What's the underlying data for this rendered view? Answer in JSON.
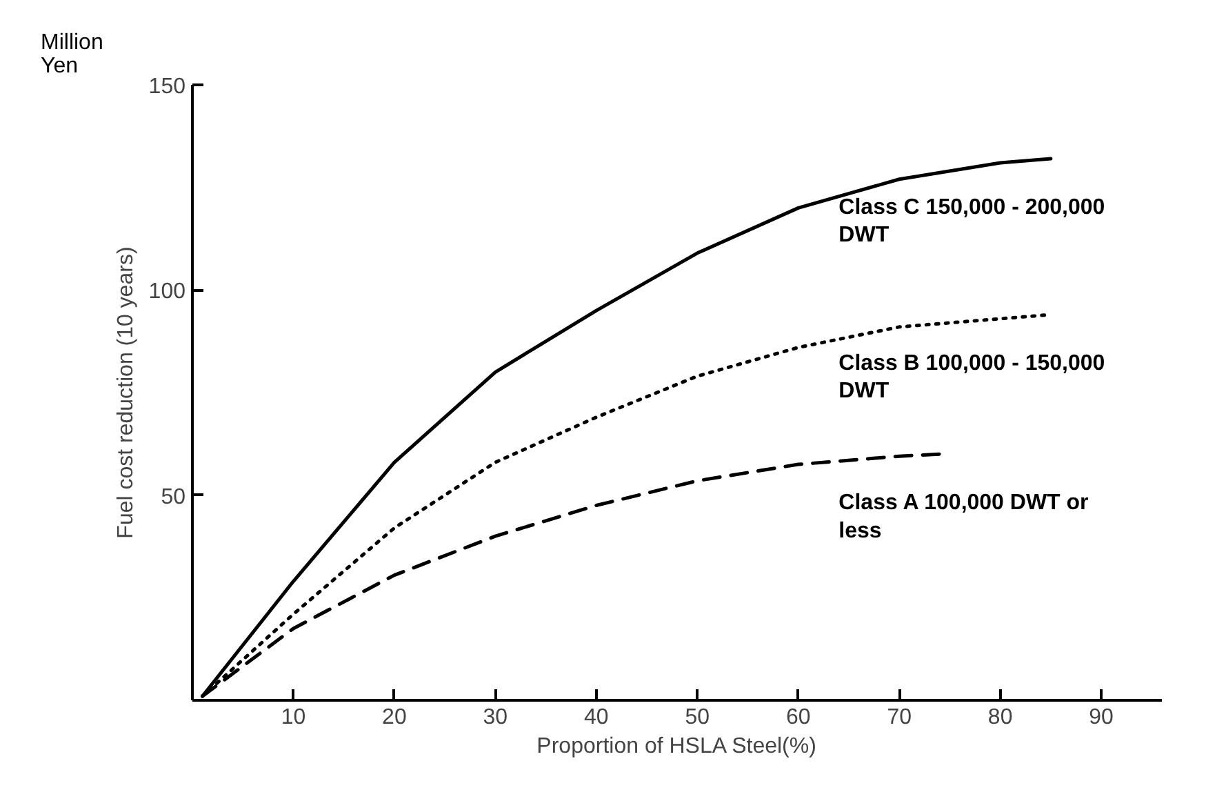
{
  "chart_data": {
    "type": "line",
    "xlabel": "Proportion of HSLA Steel(%)",
    "ylabel": "Fuel cost reduction (10 years)",
    "annotations": [
      "Million\nYen"
    ],
    "xlim": [
      0,
      96
    ],
    "ylim": [
      0,
      150
    ],
    "xticks": [
      10,
      20,
      30,
      40,
      50,
      60,
      70,
      80,
      90
    ],
    "yticks": [
      50,
      100,
      150
    ],
    "grid": false,
    "marker": "none",
    "series": [
      {
        "name": "Class C 150,000 - 200,000\nDWT",
        "color": "#000000",
        "line_style": "solid",
        "x": [
          1,
          10,
          20,
          30,
          40,
          50,
          60,
          70,
          80,
          85
        ],
        "values": [
          1,
          29,
          58,
          80,
          95,
          109,
          120,
          127,
          131,
          132
        ]
      },
      {
        "name": "Class B 100,000 - 150,000\nDWT",
        "color": "#000000",
        "line_style": "dotted",
        "x": [
          1,
          10,
          20,
          30,
          40,
          50,
          60,
          70,
          80,
          85
        ],
        "values": [
          1,
          21,
          42,
          58,
          69,
          79,
          86,
          91,
          93,
          94
        ]
      },
      {
        "name": "Class A 100,000 DWT or\nless",
        "color": "#000000",
        "line_style": "dashed",
        "x": [
          1,
          10,
          20,
          30,
          40,
          50,
          60,
          70,
          74
        ],
        "values": [
          1,
          17.5,
          30.5,
          40,
          47.5,
          53.5,
          57.5,
          59.5,
          60
        ]
      }
    ]
  }
}
